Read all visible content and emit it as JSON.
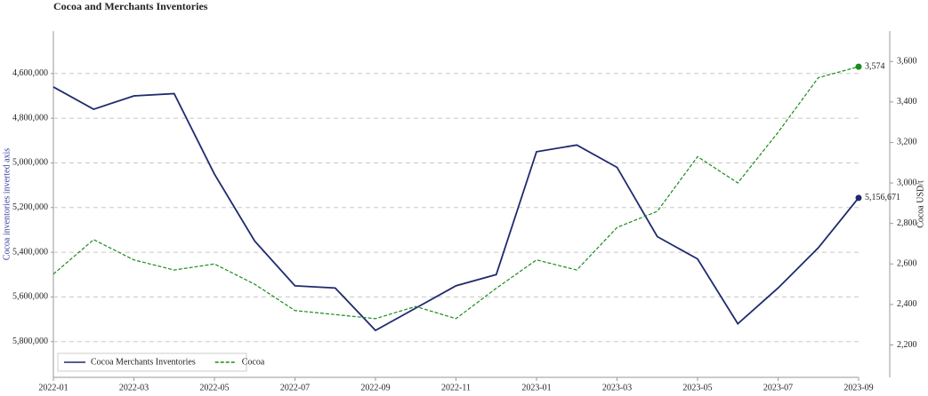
{
  "chart_data": {
    "type": "line",
    "title": "Cocoa and Merchants Inventories",
    "y_label": "Cocoa inventories inverted axis",
    "y2_label": "Cocoa USD/t",
    "x": [
      "2022-01",
      "2022-02",
      "2022-03",
      "2022-04",
      "2022-05",
      "2022-06",
      "2022-07",
      "2022-08",
      "2022-09",
      "2022-10",
      "2022-11",
      "2022-12",
      "2023-01",
      "2023-02",
      "2023-03",
      "2023-04",
      "2023-05",
      "2023-06",
      "2023-07",
      "2023-08",
      "2023-09"
    ],
    "xlim": [
      "2022-01",
      "2023-09"
    ],
    "xticks": [
      "2022-01",
      "2022-03",
      "2022-05",
      "2022-07",
      "2022-09",
      "2022-11",
      "2023-01",
      "2023-03",
      "2023-05",
      "2023-07",
      "2023-09"
    ],
    "ylim": [
      4410000,
      5960000
    ],
    "y_inverted": true,
    "yticks": [
      {
        "value": 4600000,
        "label": "4,600,000"
      },
      {
        "value": 4800000,
        "label": "4,800,000"
      },
      {
        "value": 5000000,
        "label": "5,000,000"
      },
      {
        "value": 5200000,
        "label": "5,200,000"
      },
      {
        "value": 5400000,
        "label": "5,400,000"
      },
      {
        "value": 5600000,
        "label": "5,600,000"
      },
      {
        "value": 5800000,
        "label": "5,800,000"
      }
    ],
    "y2lim": [
      2040,
      3750
    ],
    "y2ticks": [
      {
        "value": 2200,
        "label": "2,200"
      },
      {
        "value": 2400,
        "label": "2,400"
      },
      {
        "value": 2600,
        "label": "2,600"
      },
      {
        "value": 2800,
        "label": "2,800"
      },
      {
        "value": 3000,
        "label": "3,000"
      },
      {
        "value": 3200,
        "label": "3,200"
      },
      {
        "value": 3400,
        "label": "3,400"
      },
      {
        "value": 3600,
        "label": "3,600"
      }
    ],
    "grid": true,
    "legend": "lower left",
    "series": [
      {
        "name": "Cocoa Merchants Inventories",
        "color": "#1f2a6e",
        "dash": false,
        "values": [
          4660000,
          4760000,
          4700000,
          4690000,
          5050000,
          5350000,
          5550000,
          5560000,
          5750000,
          5650000,
          5550000,
          5500000,
          4950000,
          4920000,
          5020000,
          5330000,
          5430000,
          5720000,
          5560000,
          5380000,
          5156671
        ],
        "value_labels": [
          null,
          null,
          null,
          null,
          null,
          null,
          null,
          null,
          null,
          null,
          null,
          null,
          null,
          null,
          null,
          null,
          null,
          null,
          null,
          null,
          "5,156,671"
        ]
      },
      {
        "name": "Cocoa",
        "color": "#1a8c1a",
        "dash": true,
        "axis": "y2",
        "values": [
          2550,
          2720,
          2620,
          2570,
          2600,
          2500,
          2370,
          2350,
          2330,
          2390,
          2330,
          2480,
          2620,
          2570,
          2780,
          2860,
          3130,
          3000,
          3250,
          3520,
          3574
        ],
        "value_labels": [
          null,
          null,
          null,
          null,
          null,
          null,
          null,
          null,
          null,
          null,
          null,
          null,
          null,
          null,
          null,
          null,
          null,
          null,
          null,
          null,
          "3,574"
        ]
      }
    ]
  }
}
